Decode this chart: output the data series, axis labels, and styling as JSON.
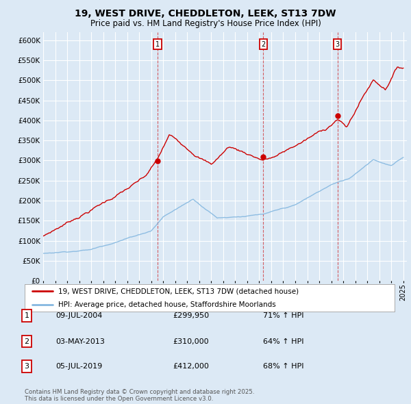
{
  "title": "19, WEST DRIVE, CHEDDLETON, LEEK, ST13 7DW",
  "subtitle": "Price paid vs. HM Land Registry's House Price Index (HPI)",
  "background_color": "#dce9f5",
  "plot_bg_color": "#dce9f5",
  "grid_color": "#ffffff",
  "hpi_color": "#85b8e0",
  "price_color": "#cc0000",
  "ylim": [
    0,
    620000
  ],
  "yticks": [
    0,
    50000,
    100000,
    150000,
    200000,
    250000,
    300000,
    350000,
    400000,
    450000,
    500000,
    550000,
    600000
  ],
  "year_start": 1995,
  "year_end": 2025,
  "purchases": [
    {
      "date": "2004-07-09",
      "price": 299950,
      "label": "1",
      "pct": "71%"
    },
    {
      "date": "2013-05-03",
      "price": 310000,
      "label": "2",
      "pct": "64%"
    },
    {
      "date": "2019-07-05",
      "price": 412000,
      "label": "3",
      "pct": "68%"
    }
  ],
  "vline_years": [
    2004.53,
    2013.34,
    2019.51
  ],
  "legend_house_label": "19, WEST DRIVE, CHEDDLETON, LEEK, ST13 7DW (detached house)",
  "legend_hpi_label": "HPI: Average price, detached house, Staffordshire Moorlands",
  "table_rows": [
    {
      "num": "1",
      "date": "09-JUL-2004",
      "price": "£299,950",
      "pct": "71% ↑ HPI"
    },
    {
      "num": "2",
      "date": "03-MAY-2013",
      "price": "£310,000",
      "pct": "64% ↑ HPI"
    },
    {
      "num": "3",
      "date": "05-JUL-2019",
      "price": "£412,000",
      "pct": "68% ↑ HPI"
    }
  ],
  "footer_line1": "Contains HM Land Registry data © Crown copyright and database right 2025.",
  "footer_line2": "This data is licensed under the Open Government Licence v3.0."
}
